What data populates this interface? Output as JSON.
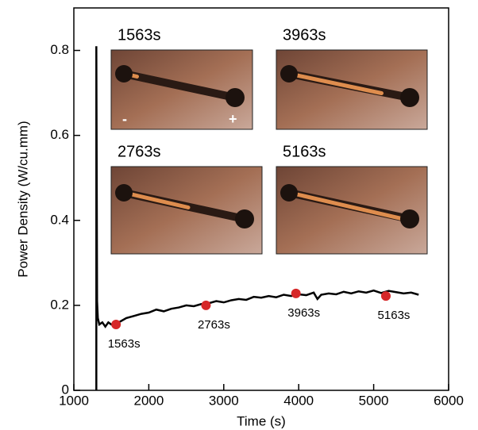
{
  "chart_data": {
    "type": "line",
    "x_label": "Time (s)",
    "y_label": "Power Density (W/cu.mm)",
    "xlim": [
      1000,
      6000
    ],
    "xticks": [
      1000,
      2000,
      3000,
      4000,
      5000,
      6000
    ],
    "ylim": [
      0,
      0.9
    ],
    "yticks": [
      0,
      0.2,
      0.4,
      0.6,
      0.8
    ],
    "color": "#000000",
    "x": [
      1300,
      1300,
      1310,
      1320,
      1340,
      1380,
      1420,
      1460,
      1500,
      1560,
      1620,
      1700,
      1800,
      1900,
      2000,
      2100,
      2200,
      2300,
      2400,
      2500,
      2600,
      2700,
      2800,
      2900,
      3000,
      3100,
      3200,
      3300,
      3400,
      3500,
      3600,
      3700,
      3800,
      3900,
      4000,
      4100,
      4200,
      4250,
      4300,
      4400,
      4500,
      4600,
      4700,
      4800,
      4900,
      5000,
      5100,
      5200,
      5300,
      5400,
      5500,
      5600
    ],
    "values": [
      0,
      0.81,
      0.21,
      0.17,
      0.155,
      0.16,
      0.15,
      0.16,
      0.155,
      0.158,
      0.162,
      0.17,
      0.175,
      0.18,
      0.183,
      0.19,
      0.186,
      0.192,
      0.195,
      0.2,
      0.198,
      0.203,
      0.205,
      0.21,
      0.207,
      0.212,
      0.215,
      0.213,
      0.22,
      0.218,
      0.222,
      0.219,
      0.225,
      0.222,
      0.226,
      0.224,
      0.23,
      0.215,
      0.225,
      0.228,
      0.226,
      0.232,
      0.228,
      0.233,
      0.23,
      0.235,
      0.229,
      0.234,
      0.231,
      0.228,
      0.23,
      0.225
    ],
    "markers": {
      "color": "#d62728",
      "x": [
        1563,
        2763,
        3963,
        5163
      ],
      "values": [
        0.155,
        0.2,
        0.228,
        0.222
      ],
      "labels": [
        "1563s",
        "2763s",
        "3963s",
        "5163s"
      ]
    },
    "insets": [
      {
        "label": "1563s",
        "signs": [
          "-",
          "+"
        ]
      },
      {
        "label": "3963s"
      },
      {
        "label": "2763s"
      },
      {
        "label": "5163s"
      }
    ]
  }
}
